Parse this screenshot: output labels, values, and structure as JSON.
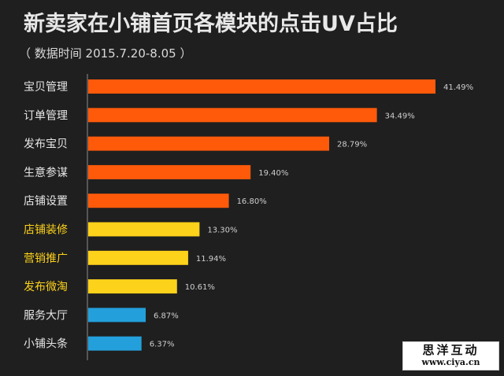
{
  "chart_data": {
    "type": "bar",
    "orientation": "horizontal",
    "title": "新卖家在小铺首页各模块的点击UV占比",
    "subtitle": "（ 数据时间 2015.7.20-8.05 ）",
    "categories": [
      "宝贝管理",
      "订单管理",
      "发布宝贝",
      "生意参谋",
      "店铺设置",
      "店铺装修",
      "营销推广",
      "发布微淘",
      "服务大厅",
      "小铺头条"
    ],
    "values": [
      41.49,
      34.49,
      28.79,
      19.4,
      16.8,
      13.3,
      11.94,
      10.61,
      6.87,
      6.37
    ],
    "value_labels": [
      "41.49%",
      "34.49%",
      "28.79%",
      "19.40%",
      "16.80%",
      "13.30%",
      "11.94%",
      "10.61%",
      "6.87%",
      "6.37%"
    ],
    "bar_colors": [
      "#ff5a0a",
      "#ff5a0a",
      "#ff5a0a",
      "#ff5a0a",
      "#ff5a0a",
      "#fdd21a",
      "#fdd21a",
      "#fdd21a",
      "#23a0dc",
      "#23a0dc"
    ],
    "label_colors": [
      "#e6e6e6",
      "#e6e6e6",
      "#e6e6e6",
      "#e6e6e6",
      "#e6e6e6",
      "#fdd21a",
      "#fdd21a",
      "#fdd21a",
      "#e6e6e6",
      "#e6e6e6"
    ],
    "xlim": [
      0,
      41.49
    ],
    "xlabel": "",
    "ylabel": "",
    "grid": false,
    "legend": "none"
  },
  "watermark": {
    "name": "思洋互动",
    "url": "www.ciya.cn"
  }
}
